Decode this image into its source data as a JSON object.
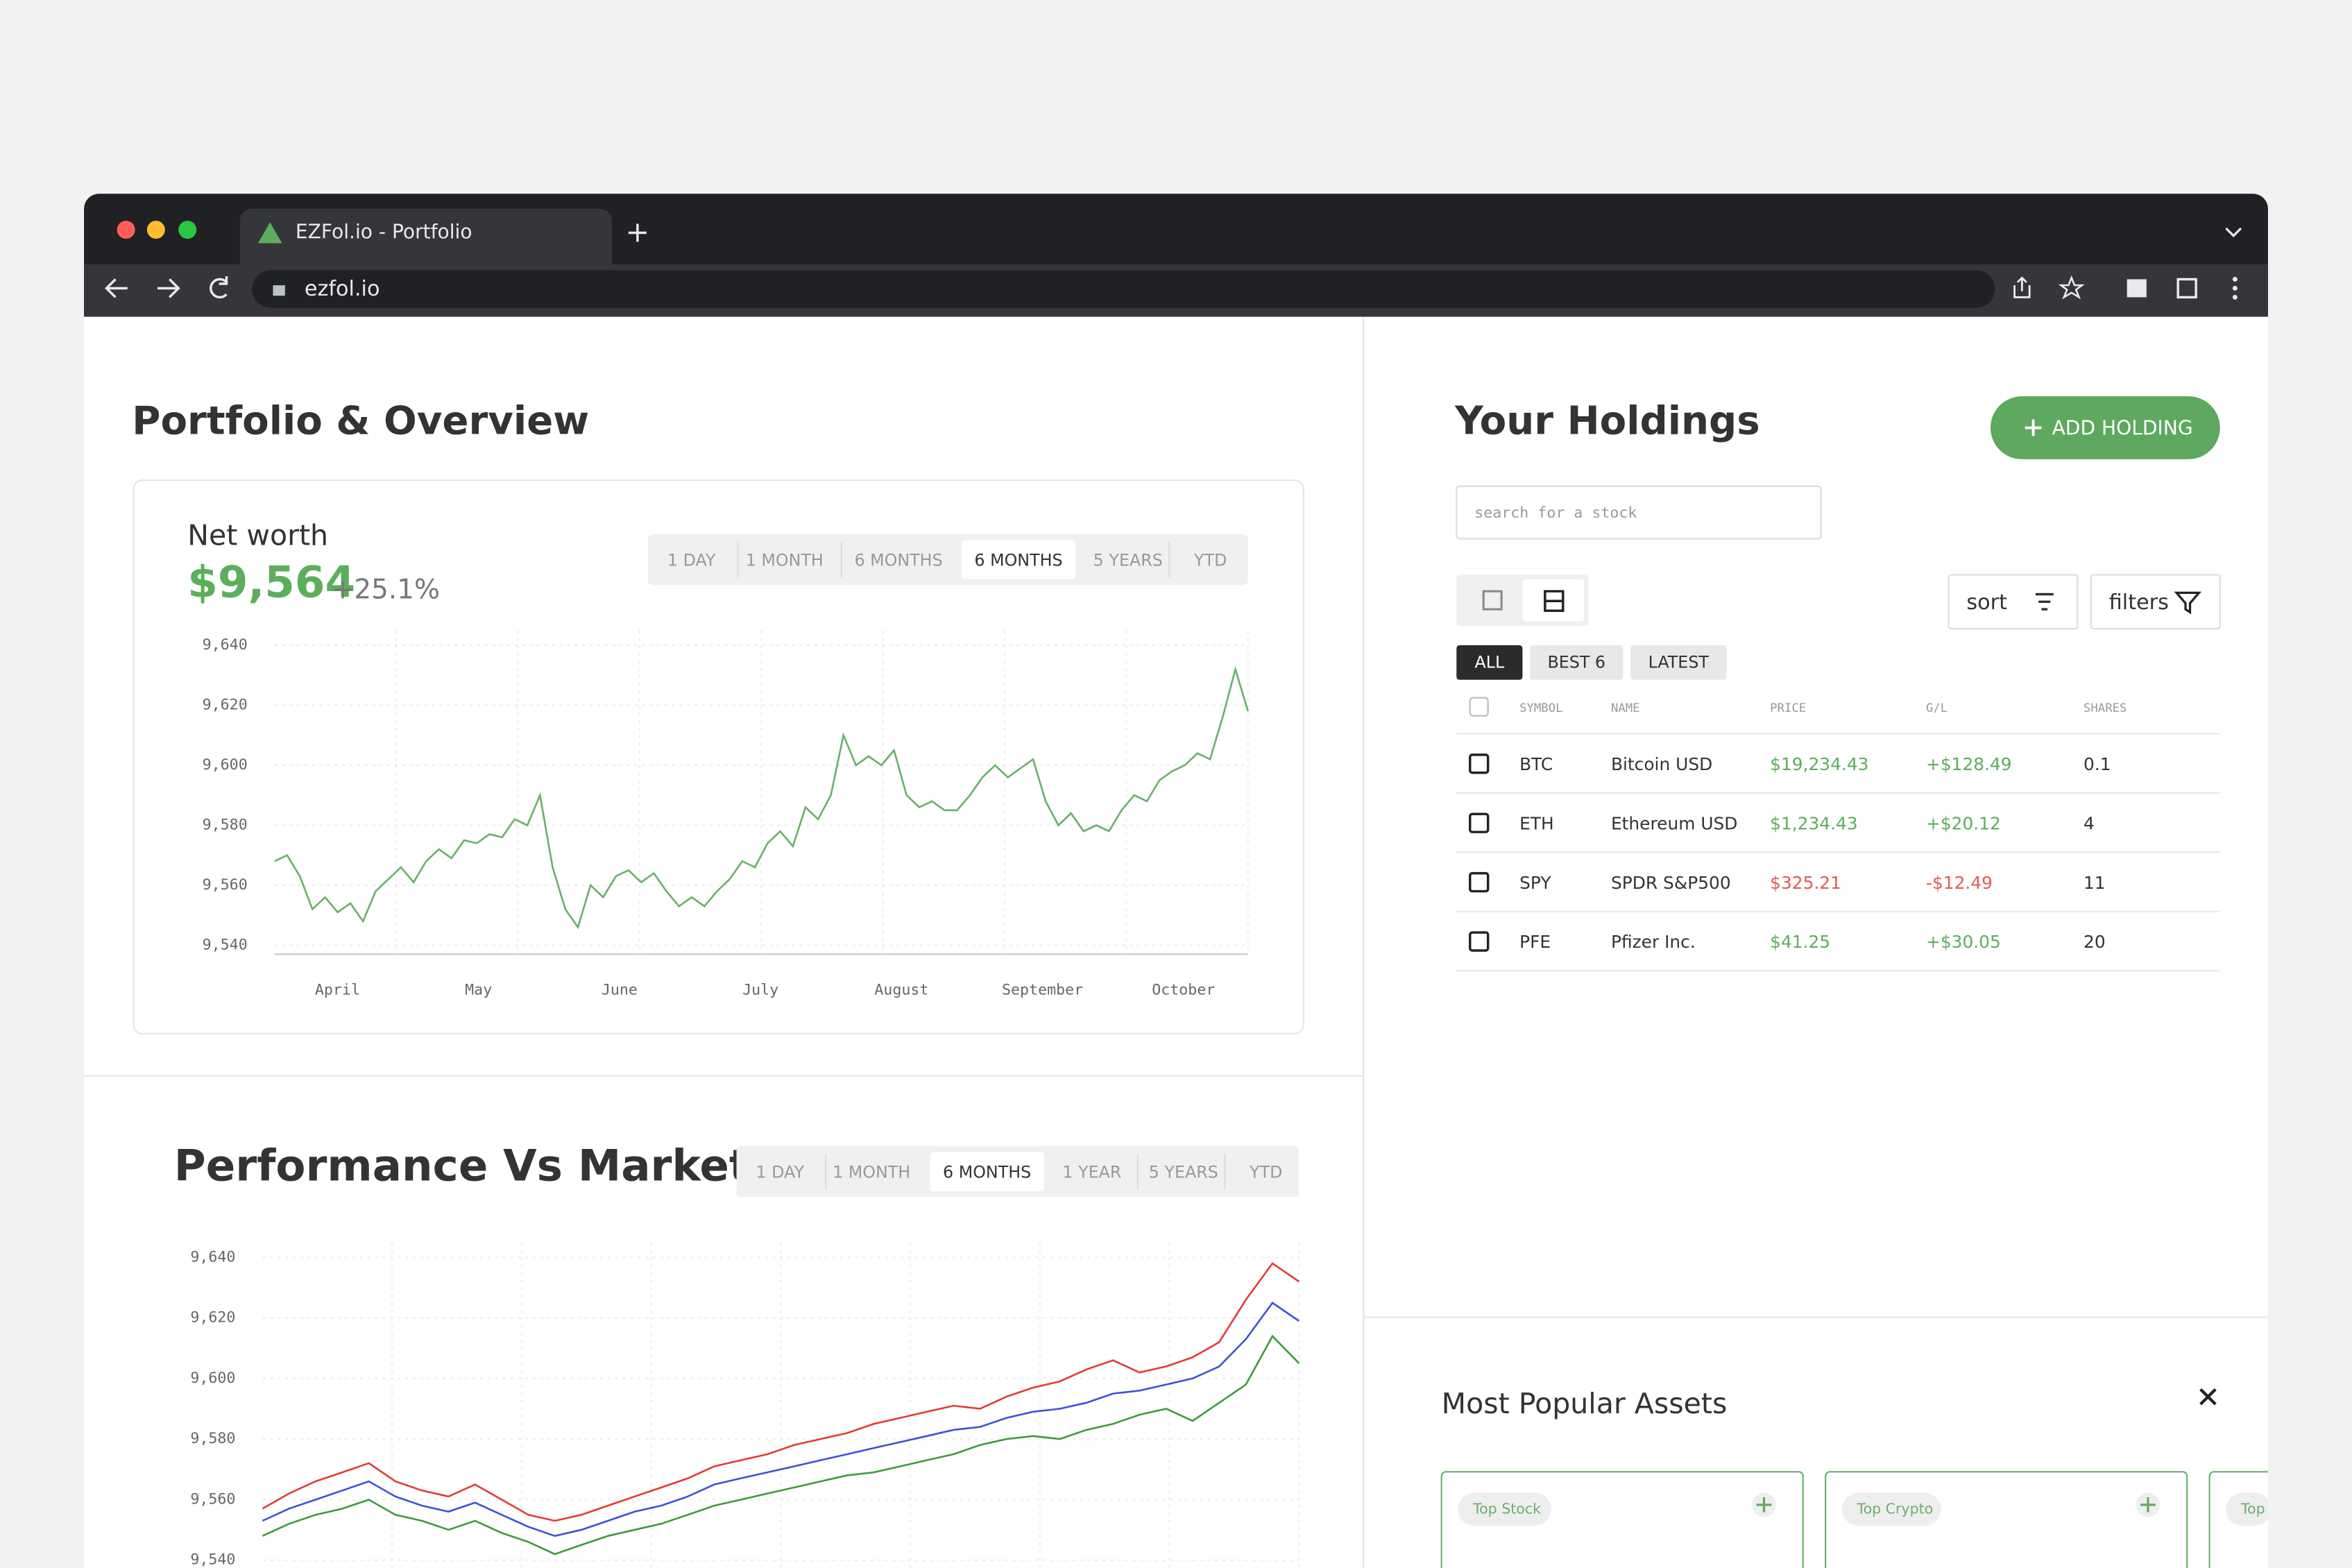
{
  "browser": {
    "tab_title": "EZFol.io - Portfolio",
    "url": "ezfol.io"
  },
  "portfolio": {
    "title": "Portfolio & Overview",
    "net_worth_label": "Net worth",
    "net_worth": "$9,564",
    "change": "+25.1%",
    "ranges": [
      "1 DAY",
      "1 MONTH",
      "6 MONTHS",
      "6 MONTHS",
      "5 YEARS",
      "YTD"
    ],
    "active_range": 3
  },
  "performance": {
    "title": "Performance Vs Market",
    "ranges": [
      "1 DAY",
      "1 MONTH",
      "6 MONTHS",
      "1 YEAR",
      "5 YEARS",
      "YTD"
    ],
    "active_range": 2
  },
  "chart_data": [
    {
      "type": "line",
      "color": "#6aaf6a",
      "grid": true,
      "ylim": [
        9537,
        9645
      ],
      "yticks": [
        {
          "value": 9540,
          "label": "9,540"
        },
        {
          "value": 9560,
          "label": "9,560"
        },
        {
          "value": 9580,
          "label": "9,580"
        },
        {
          "value": 9600,
          "label": "9,600"
        },
        {
          "value": 9620,
          "label": "9,620"
        },
        {
          "value": 9640,
          "label": "9,640"
        }
      ],
      "x_labels": [
        "April",
        "May",
        "June",
        "July",
        "August",
        "September",
        "October"
      ],
      "values": [
        9568,
        9570,
        9563,
        9552,
        9556,
        9551,
        9554,
        9548,
        9558,
        9562,
        9566,
        9561,
        9568,
        9572,
        9569,
        9575,
        9574,
        9577,
        9576,
        9582,
        9580,
        9590,
        9566,
        9552,
        9546,
        9560,
        9556,
        9563,
        9565,
        9561,
        9564,
        9558,
        9553,
        9556,
        9553,
        9558,
        9562,
        9568,
        9566,
        9574,
        9578,
        9573,
        9586,
        9582,
        9590,
        9610,
        9600,
        9603,
        9600,
        9605,
        9590,
        9586,
        9588,
        9585,
        9585,
        9590,
        9596,
        9600,
        9596,
        9599,
        9602,
        9588,
        9580,
        9584,
        9578,
        9580,
        9578,
        9585,
        9590,
        9588,
        9595,
        9598,
        9600,
        9604,
        9602,
        9616,
        9632,
        9618
      ]
    },
    {
      "type": "line",
      "grid": true,
      "ylim": [
        9536,
        9645
      ],
      "yticks": [
        {
          "value": 9540,
          "label": "9,540"
        },
        {
          "value": 9560,
          "label": "9,560"
        },
        {
          "value": 9580,
          "label": "9,580"
        },
        {
          "value": 9600,
          "label": "9,600"
        },
        {
          "value": 9620,
          "label": "9,620"
        },
        {
          "value": 9640,
          "label": "9,640"
        }
      ],
      "series": [
        {
          "color": "#e53935",
          "values": [
            9557,
            9562,
            9566,
            9569,
            9572,
            9566,
            9563,
            9561,
            9565,
            9560,
            9555,
            9553,
            9555,
            9558,
            9561,
            9564,
            9567,
            9571,
            9573,
            9575,
            9578,
            9580,
            9582,
            9585,
            9587,
            9589,
            9591,
            9590,
            9594,
            9597,
            9599,
            9603,
            9606,
            9602,
            9604,
            9607,
            9612,
            9626,
            9638,
            9632
          ]
        },
        {
          "color": "#3f51d8",
          "values": [
            9553,
            9557,
            9560,
            9563,
            9566,
            9561,
            9558,
            9556,
            9559,
            9555,
            9551,
            9548,
            9550,
            9553,
            9556,
            9558,
            9561,
            9565,
            9567,
            9569,
            9571,
            9573,
            9575,
            9577,
            9579,
            9581,
            9583,
            9584,
            9587,
            9589,
            9590,
            9592,
            9595,
            9596,
            9598,
            9600,
            9604,
            9613,
            9625,
            9619
          ]
        },
        {
          "color": "#3d9a3d",
          "values": [
            9548,
            9552,
            9555,
            9557,
            9560,
            9555,
            9553,
            9550,
            9553,
            9549,
            9546,
            9542,
            9545,
            9548,
            9550,
            9552,
            9555,
            9558,
            9560,
            9562,
            9564,
            9566,
            9568,
            9569,
            9571,
            9573,
            9575,
            9578,
            9580,
            9581,
            9580,
            9583,
            9585,
            9588,
            9590,
            9586,
            9592,
            9598,
            9614,
            9605
          ]
        }
      ]
    }
  ],
  "holdings": {
    "title": "Your Holdings",
    "add_button": "ADD HOLDING",
    "search_placeholder": "search for a stock",
    "sort": "sort",
    "filters": "filters",
    "tabs": [
      "ALL",
      "BEST 6",
      "LATEST"
    ],
    "active_tab": 0,
    "columns": [
      "SYMBOL",
      "NAME",
      "PRICE",
      "G/L",
      "SHARES"
    ],
    "rows": [
      [
        "BTC",
        "Bitcoin USD",
        "$19,234.43",
        "+$128.49",
        "0.1"
      ],
      [
        "ETH",
        "Ethereum USD",
        "$1,234.43",
        "+$20.12",
        "4"
      ],
      [
        "SPY",
        "SPDR S&P500",
        "$325.21",
        "-$12.49",
        "11"
      ],
      [
        "PFE",
        "Pfizer Inc.",
        "$41.25",
        "+$30.05",
        "20"
      ]
    ],
    "row_colors": [
      "#5cae5c",
      "#5cae5c",
      "#e05a5a",
      "#5cae5c"
    ]
  },
  "popular": {
    "title": "Most Popular Assets",
    "cards": [
      "Top Stock",
      "Top Crypto",
      "Top"
    ]
  }
}
